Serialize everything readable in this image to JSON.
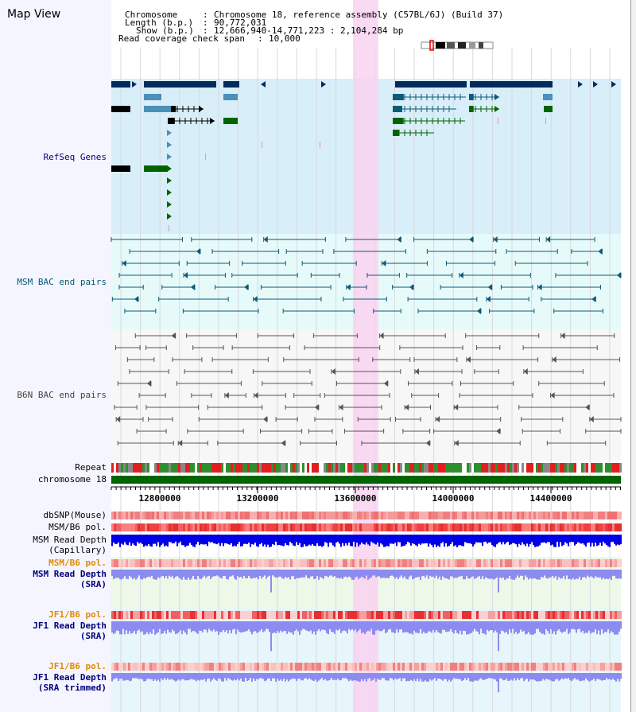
{
  "title": "Map View",
  "info": {
    "chromosome_key": "Chromosome",
    "chromosome_val": "Chromosome 18, reference assembly (C57BL/6J) (Build 37)",
    "length_key": "Length (b.p.)",
    "length_val": "90,772,031",
    "show_key": "Show (b.p.)",
    "show_val": "12,666,940-14,771,223 : 2,104,284 bp",
    "span_key": "Read coverage check span",
    "span_val": "10,000"
  },
  "tracks": {
    "refseq": "RefSeq Genes",
    "msm_bac": "MSM BAC end pairs",
    "b6n_bac": "B6N BAC end pairs",
    "repeat": "Repeat",
    "chromosome": "chromosome 18",
    "dbsnp": "dbSNP(Mouse)",
    "msm_b6_pol_1": "MSM/B6 pol.",
    "msm_depth_cap_1": "MSM Read Depth",
    "msm_depth_cap_2": "(Capillary)",
    "msm_b6_pol_2": "MSM/B6 pol.",
    "msm_depth_sra_1": "MSM Read Depth",
    "msm_depth_sra_2": "(SRA)",
    "jf1_b6_pol_1": "JF1/B6 pol.",
    "jf1_depth_sra_1": "JF1 Read Depth",
    "jf1_depth_sra_2": "(SRA)",
    "jf1_b6_pol_2": "JF1/B6 pol.",
    "jf1_depth_trim_1": "JF1 Read Depth",
    "jf1_depth_trim_2": "(SRA trimmed)"
  },
  "ruler": {
    "ticks": [
      "12800000",
      "13200000",
      "13600000",
      "14000000",
      "14400000"
    ]
  },
  "colors": {
    "refseq_bg": "#d8eef8",
    "msm_bg": "#e6fafa",
    "highlight": "#f9d2f0",
    "navy": "#002b5c",
    "teal": "#0c5a78",
    "green": "#006400",
    "chromosome": "#006400",
    "depth_dark": "#0000e6",
    "depth_light": "#8c8cf0",
    "label_orange": "#e08a00",
    "label_blue": "#00007a",
    "label_teal": "#005a78"
  }
}
